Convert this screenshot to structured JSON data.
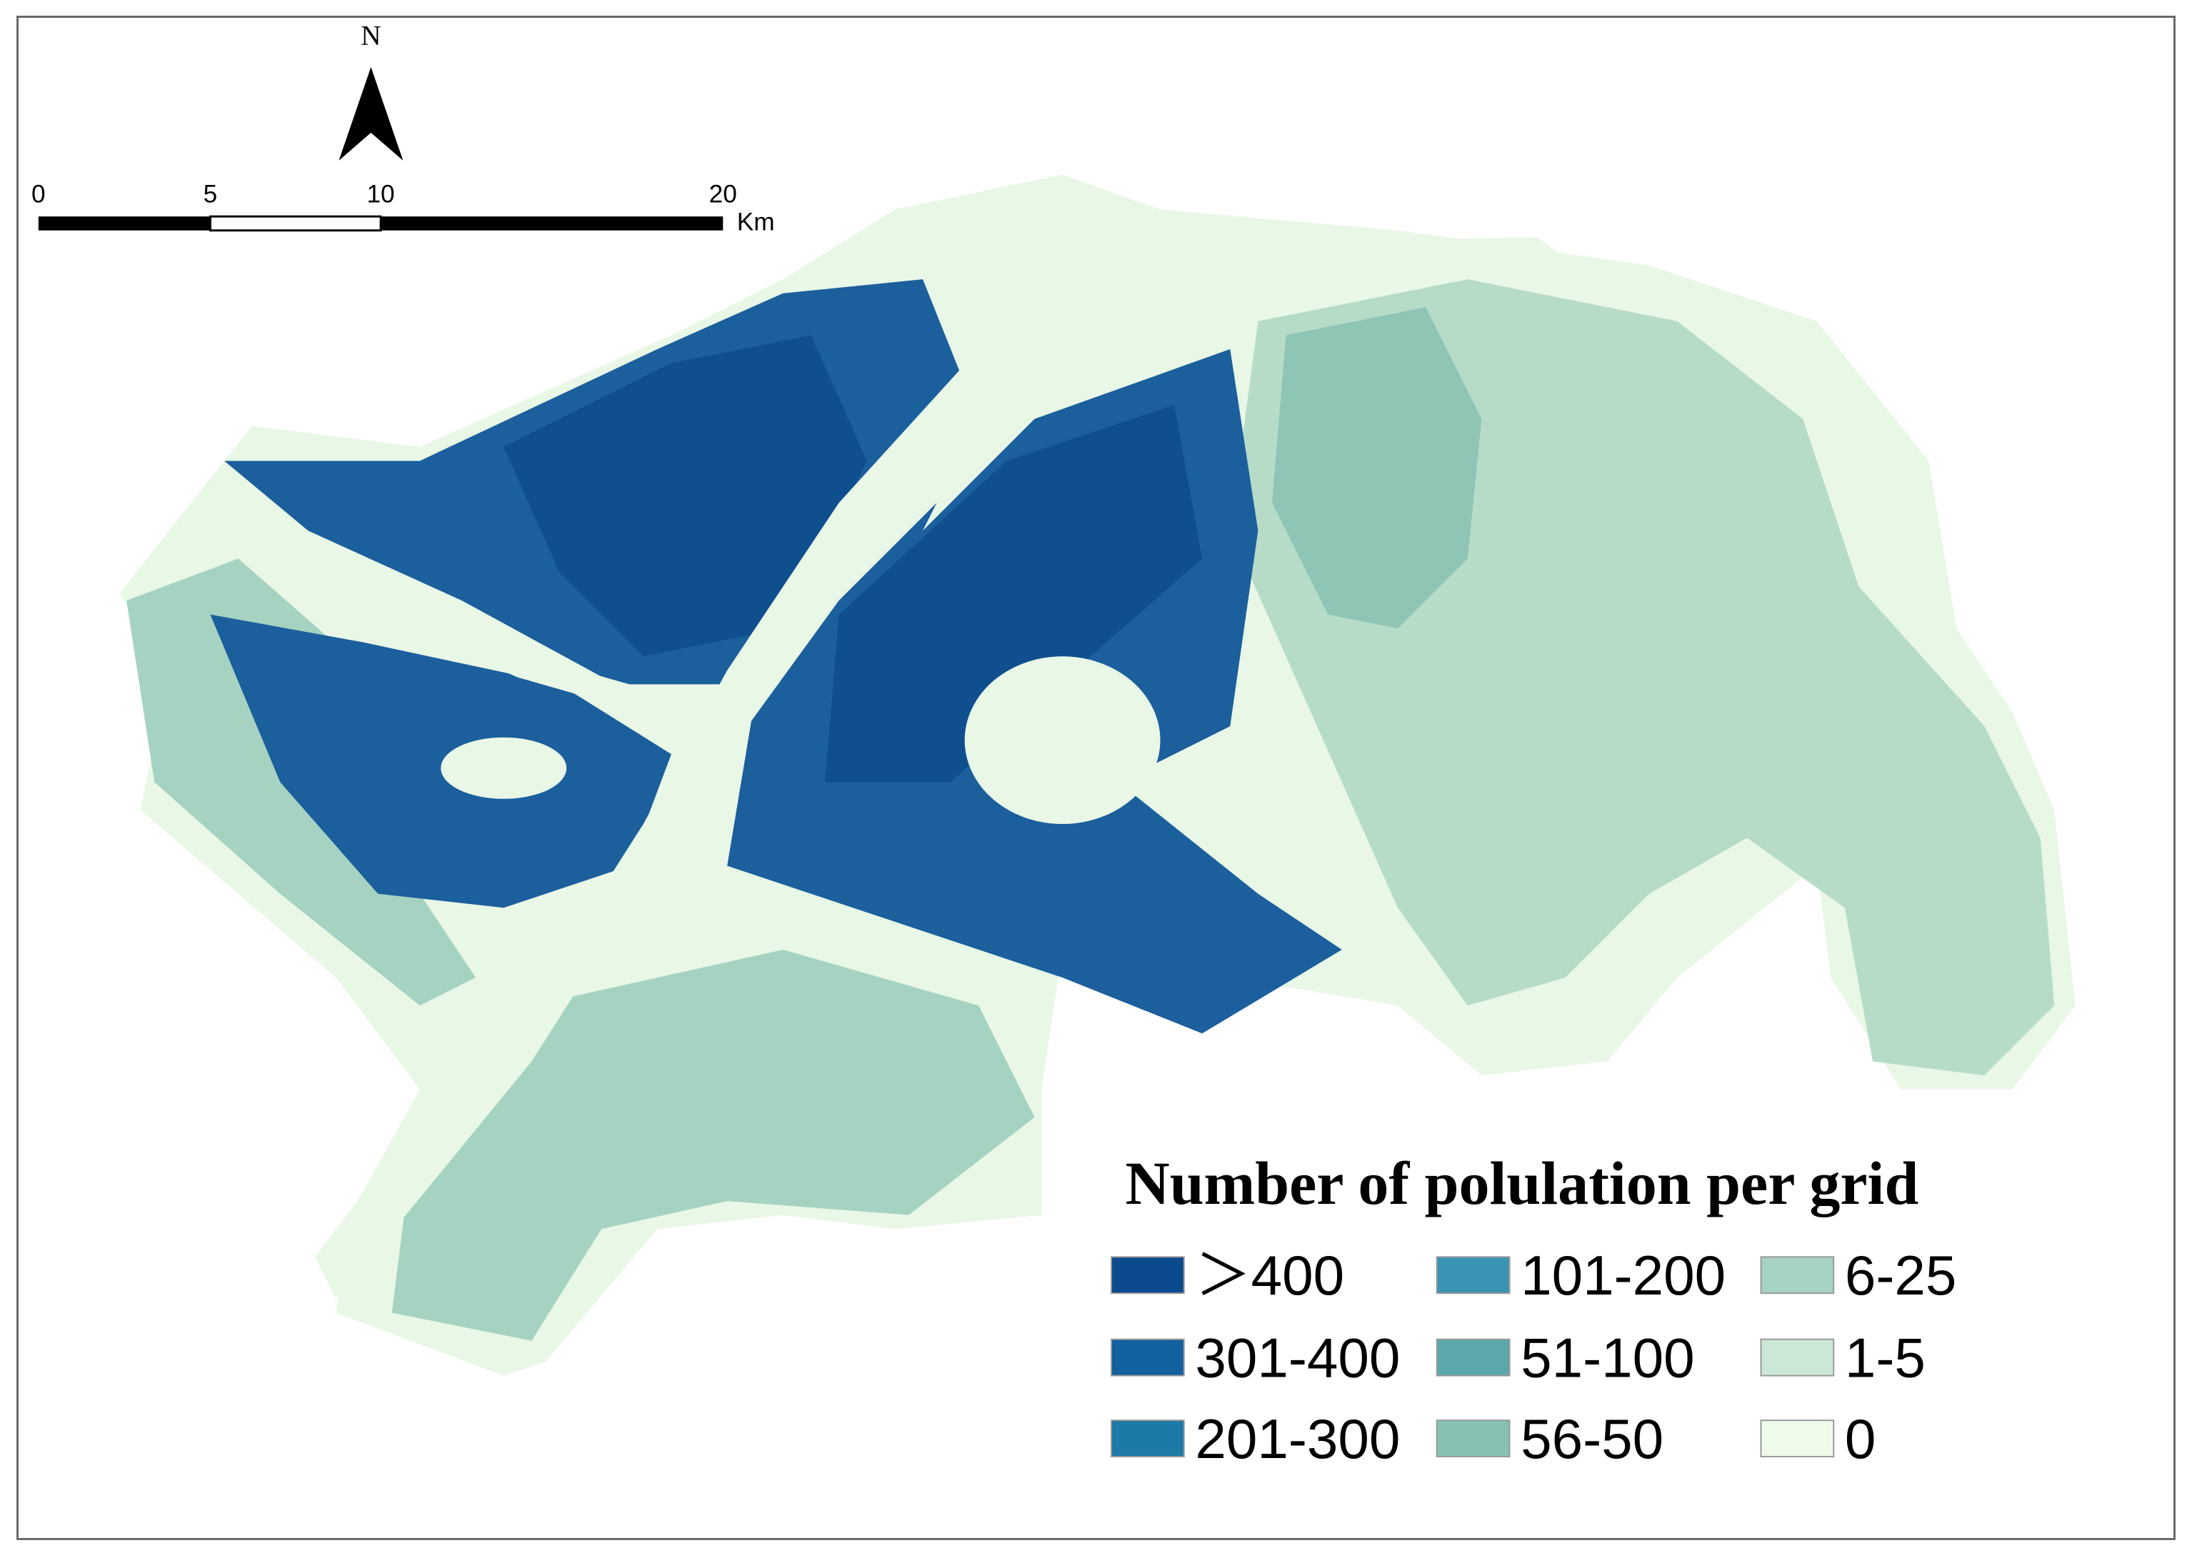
{
  "north_label": "N",
  "scale_bar": {
    "ticks": [
      0,
      5,
      10,
      20
    ],
    "unit": "Km"
  },
  "legend": {
    "title": "Number of polulation per grid",
    "items": [
      {
        "label": "＞400",
        "color": "#0b4a8c"
      },
      {
        "label": "301-400",
        "color": "#13609f"
      },
      {
        "label": "201-300",
        "color": "#1d79a6"
      },
      {
        "label": "101-200",
        "color": "#3a93b2"
      },
      {
        "label": "51-100",
        "color": "#5aa8aa"
      },
      {
        "label": "56-50",
        "color": "#86c1b2"
      },
      {
        "label": "6-25",
        "color": "#a6d3c1"
      },
      {
        "label": "1-5",
        "color": "#cbe8d6"
      },
      {
        "label": "0",
        "color": "#eefaea"
      }
    ]
  }
}
